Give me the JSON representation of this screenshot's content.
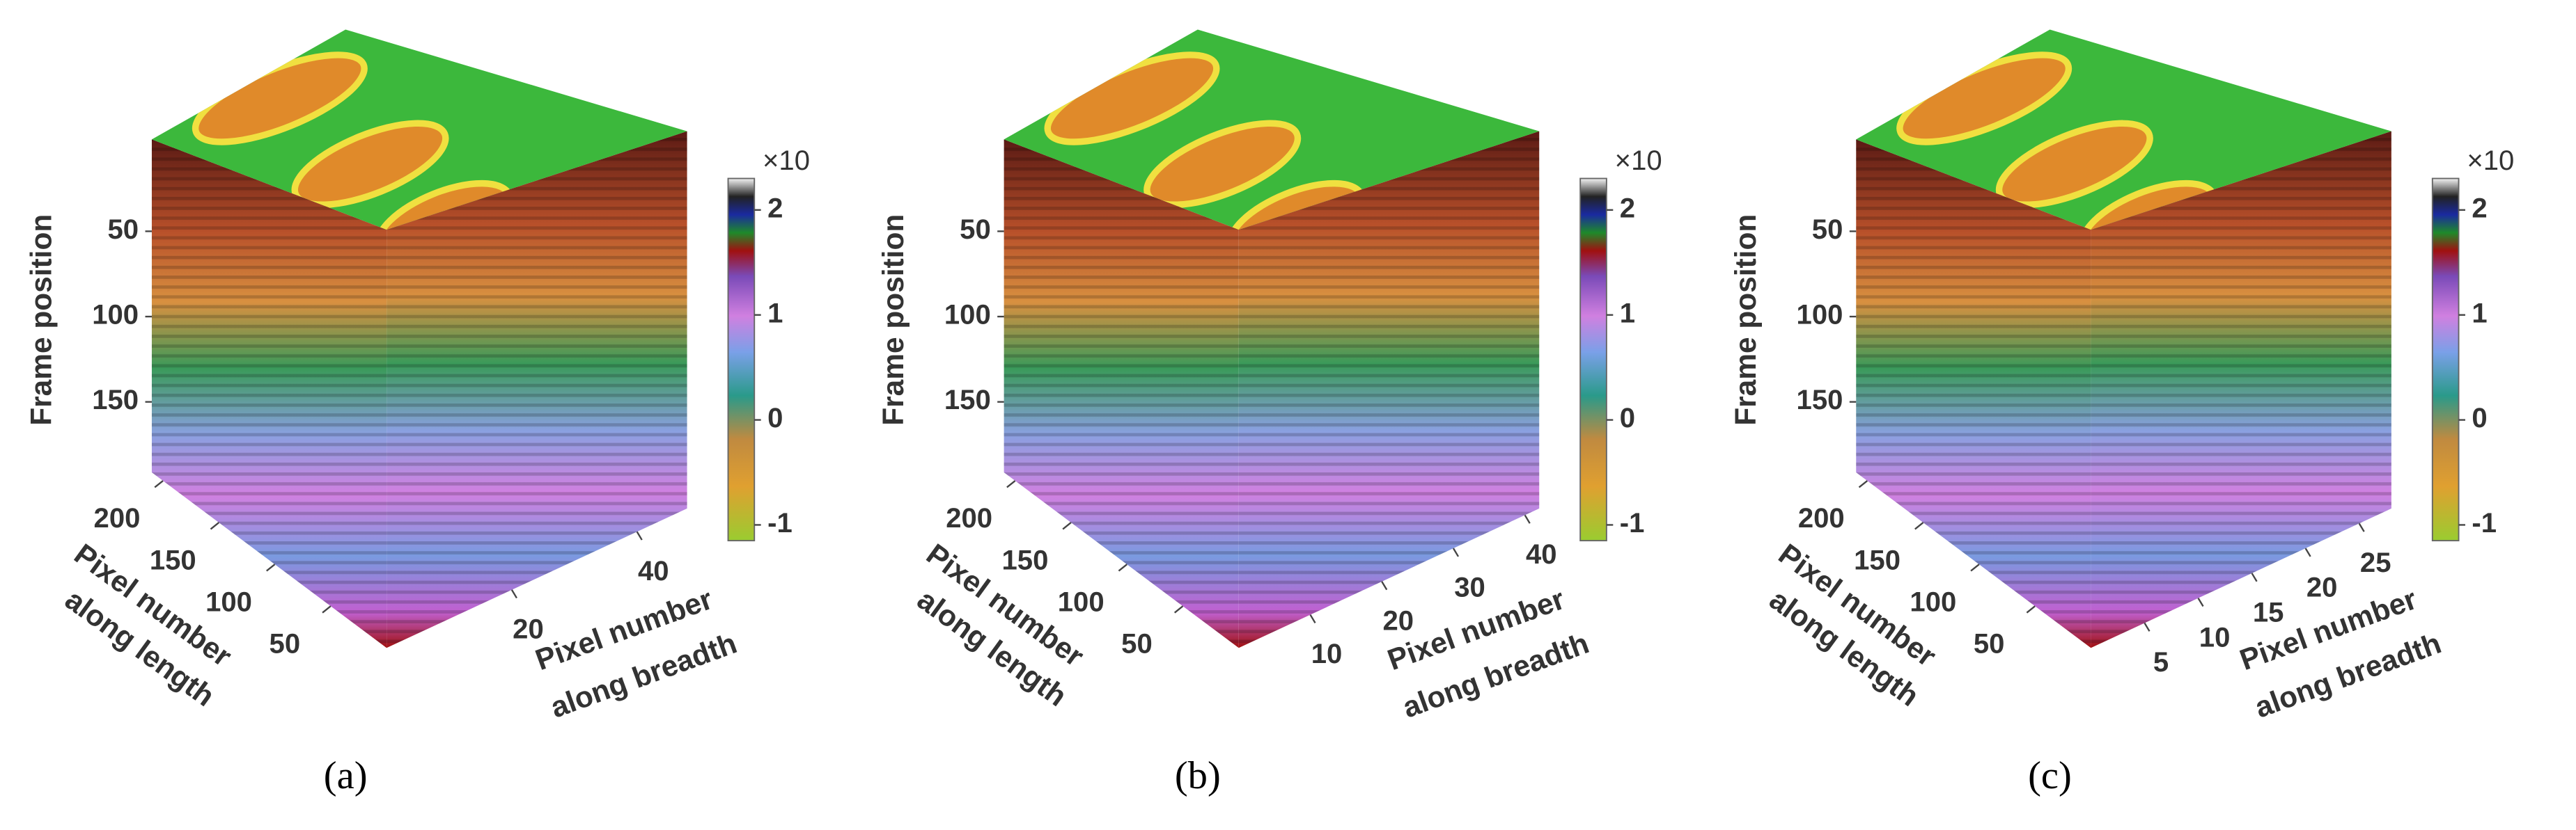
{
  "panels": [
    {
      "label": "(a)",
      "z_label": "Frame position",
      "z_lim": [
        0,
        200
      ],
      "z_ticks": [
        50,
        100,
        150
      ],
      "length_label": [
        "Pixel number",
        "along length"
      ],
      "length_lim": [
        0,
        210
      ],
      "length_ticks": [
        50,
        100,
        150,
        200
      ],
      "breadth_label": [
        "Pixel number",
        "along breadth"
      ],
      "breadth_lim": [
        0,
        48
      ],
      "breadth_ticks": [
        20,
        40
      ],
      "colorbar": {
        "exponent_label": "×10",
        "lim": [
          -1.15,
          2.3
        ],
        "ticks": [
          -1,
          0,
          1,
          2
        ]
      }
    },
    {
      "label": "(b)",
      "z_label": "Frame position",
      "z_lim": [
        0,
        200
      ],
      "z_ticks": [
        50,
        100,
        150
      ],
      "length_label": [
        "Pixel number",
        "along length"
      ],
      "length_lim": [
        0,
        210
      ],
      "length_ticks": [
        50,
        100,
        150,
        200
      ],
      "breadth_label": [
        "Pixel number",
        "along breadth"
      ],
      "breadth_lim": [
        0,
        42
      ],
      "breadth_ticks": [
        10,
        20,
        30,
        40
      ],
      "colorbar": {
        "exponent_label": "×10",
        "lim": [
          -1.15,
          2.3
        ],
        "ticks": [
          -1,
          0,
          1,
          2
        ]
      }
    },
    {
      "label": "(c)",
      "z_label": "Frame position",
      "z_lim": [
        0,
        200
      ],
      "z_ticks": [
        50,
        100,
        150
      ],
      "length_label": [
        "Pixel number",
        "along length"
      ],
      "length_lim": [
        0,
        210
      ],
      "length_ticks": [
        50,
        100,
        150,
        200
      ],
      "breadth_label": [
        "Pixel number",
        "along breadth"
      ],
      "breadth_lim": [
        0,
        28
      ],
      "breadth_ticks": [
        5,
        10,
        15,
        20,
        25
      ],
      "colorbar": {
        "exponent_label": "×10",
        "lim": [
          -1.15,
          2.3
        ],
        "ticks": [
          -1,
          0,
          1,
          2
        ]
      }
    }
  ]
}
